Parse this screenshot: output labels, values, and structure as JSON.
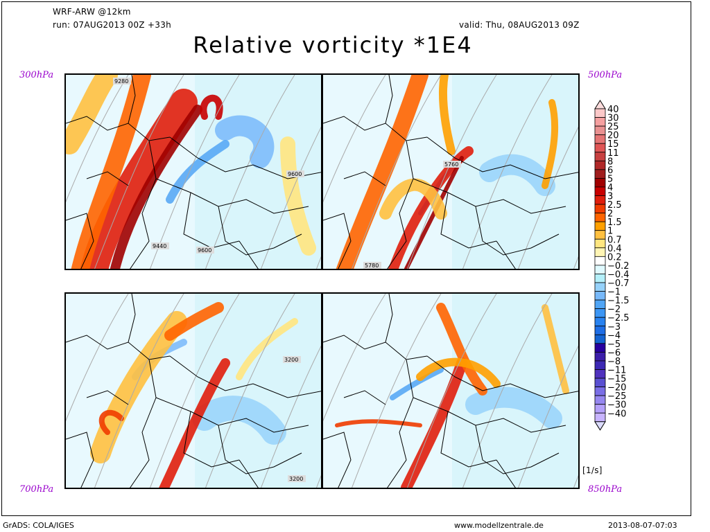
{
  "header": {
    "model": "WRF-ARW @12km",
    "run": "run: 07AUG2013 00Z +33h",
    "valid": "valid: Thu, 08AUG2013 09Z",
    "title": "Relative vorticity *1E4"
  },
  "chart_data": {
    "type": "heatmap",
    "title": "Relative vorticity *1E4",
    "units": "[1/s]",
    "panels": [
      {
        "level": "300hPa",
        "contour_labels": [
          "9280",
          "9600",
          "9440",
          "9600"
        ]
      },
      {
        "level": "500hPa",
        "contour_labels": [
          "5760",
          "5780"
        ]
      },
      {
        "level": "700hPa",
        "contour_labels": [
          "3200",
          "3200"
        ]
      },
      {
        "level": "850hPa",
        "contour_labels": []
      }
    ],
    "colorbar": {
      "labels": [
        "40",
        "30",
        "25",
        "20",
        "15",
        "11",
        "8",
        "6",
        "5",
        "4",
        "3",
        "2.5",
        "2",
        "1.5",
        "1",
        "0.7",
        "0.4",
        "0.2",
        "-0.2",
        "-0.4",
        "-0.7",
        "-1",
        "-1.5",
        "-2",
        "-2.5",
        "-3",
        "-4",
        "-5",
        "-6",
        "-8",
        "-11",
        "-15",
        "-20",
        "-25",
        "-30",
        "-40"
      ],
      "colors": [
        "#fcdcdc",
        "#fbc8c8",
        "#f5a0a0",
        "#e99191",
        "#e57575",
        "#e05555",
        "#c84040",
        "#b02828",
        "#a01e1e",
        "#a00000",
        "#c80000",
        "#e01e0c",
        "#f03c00",
        "#ff6400",
        "#ffa000",
        "#ffc040",
        "#ffe680",
        "#fff5b4",
        "#ffffff",
        "#e0faff",
        "#b4f0fa",
        "#96d2fa",
        "#78b9fa",
        "#50a5f5",
        "#3c96f5",
        "#2882f0",
        "#1e6ee6",
        "#1464d2",
        "#2800a0",
        "#3c1eaa",
        "#3c28b4",
        "#5032be",
        "#5a50d2",
        "#7a6ee6",
        "#9687f0",
        "#b4a0fa",
        "#c8b4ff",
        "#dcdcff"
      ]
    }
  },
  "footer": {
    "left": "GrADS: COLA/IGES",
    "center": "www.modellzentrale.de",
    "right": "2013-08-07-07:03"
  }
}
